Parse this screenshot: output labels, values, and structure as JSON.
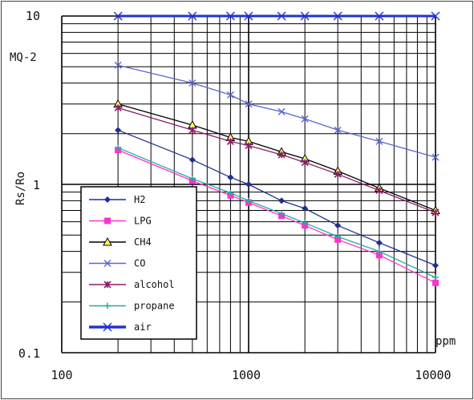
{
  "chart_data": {
    "type": "line",
    "title": "MQ-2",
    "xlabel": "ppm",
    "ylabel": "Rs/Ro",
    "xscale": "log",
    "yscale": "log",
    "xlim": [
      100,
      10000
    ],
    "ylim": [
      0.1,
      10
    ],
    "x_tick_labels": [
      "100",
      "1000",
      "10000"
    ],
    "y_tick_labels": [
      "0.1",
      "1",
      "10"
    ],
    "grid": true,
    "legend_position": "lower-left",
    "series": [
      {
        "name": "H2",
        "color": "#1f2f8f",
        "marker": "diamond",
        "x": [
          200,
          500,
          800,
          1000,
          1500,
          2000,
          3000,
          5000,
          10000
        ],
        "y": [
          2.1,
          1.4,
          1.1,
          1.0,
          0.8,
          0.72,
          0.57,
          0.45,
          0.33
        ]
      },
      {
        "name": "LPG",
        "color": "#ff33cc",
        "marker": "square",
        "x": [
          200,
          500,
          800,
          1000,
          1500,
          2000,
          3000,
          5000,
          10000
        ],
        "y": [
          1.6,
          1.05,
          0.86,
          0.78,
          0.65,
          0.57,
          0.47,
          0.38,
          0.26
        ]
      },
      {
        "name": "CH4",
        "color": "#000000",
        "marker": "triangle",
        "x": [
          200,
          500,
          800,
          1000,
          1500,
          2000,
          3000,
          5000,
          10000
        ],
        "y": [
          3.0,
          2.25,
          1.9,
          1.8,
          1.56,
          1.42,
          1.2,
          0.95,
          0.7
        ]
      },
      {
        "name": "CO",
        "color": "#5a66cc",
        "marker": "x",
        "x": [
          200,
          500,
          800,
          1000,
          1500,
          2000,
          3000,
          5000,
          10000
        ],
        "y": [
          5.1,
          4.0,
          3.4,
          3.0,
          2.7,
          2.45,
          2.1,
          1.8,
          1.45
        ]
      },
      {
        "name": "alcohol",
        "color": "#8b1a6b",
        "marker": "star",
        "x": [
          200,
          500,
          800,
          1000,
          1500,
          2000,
          3000,
          5000,
          10000
        ],
        "y": [
          2.85,
          2.1,
          1.8,
          1.7,
          1.5,
          1.35,
          1.15,
          0.92,
          0.68
        ]
      },
      {
        "name": "propane",
        "color": "#2aa8a0",
        "marker": "plus",
        "x": [
          200,
          500,
          800,
          1000,
          1500,
          2000,
          3000,
          5000,
          10000
        ],
        "y": [
          1.65,
          1.08,
          0.89,
          0.8,
          0.67,
          0.59,
          0.49,
          0.4,
          0.28
        ]
      },
      {
        "name": "air",
        "color": "#2233cc",
        "marker": "x",
        "bold": true,
        "x": [
          200,
          500,
          800,
          1000,
          1500,
          2000,
          3000,
          5000,
          10000
        ],
        "y": [
          10,
          10,
          10,
          10,
          10,
          10,
          10,
          10,
          10
        ]
      }
    ]
  }
}
